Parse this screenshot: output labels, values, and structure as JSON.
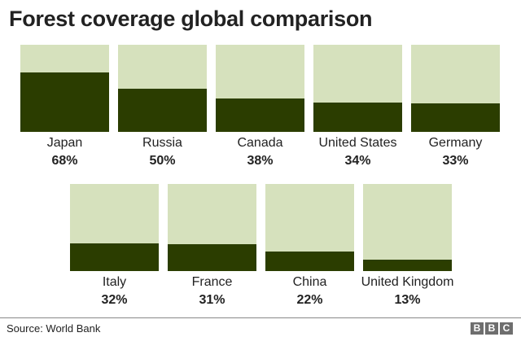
{
  "chart_data": {
    "type": "bar",
    "title": "Forest coverage global comparison",
    "categories": [
      "Japan",
      "Russia",
      "Canada",
      "United States",
      "Germany",
      "Italy",
      "France",
      "China",
      "United Kingdom"
    ],
    "values": [
      68,
      50,
      38,
      34,
      33,
      32,
      31,
      22,
      13
    ],
    "value_labels": [
      "68%",
      "50%",
      "38%",
      "34%",
      "33%",
      "32%",
      "31%",
      "22%",
      "13%"
    ],
    "ylim": [
      0,
      100
    ],
    "colors": {
      "forest": "#2b3d00",
      "background": "#d6e1bd"
    }
  },
  "source": "Source: World Bank",
  "logo": "BBC"
}
